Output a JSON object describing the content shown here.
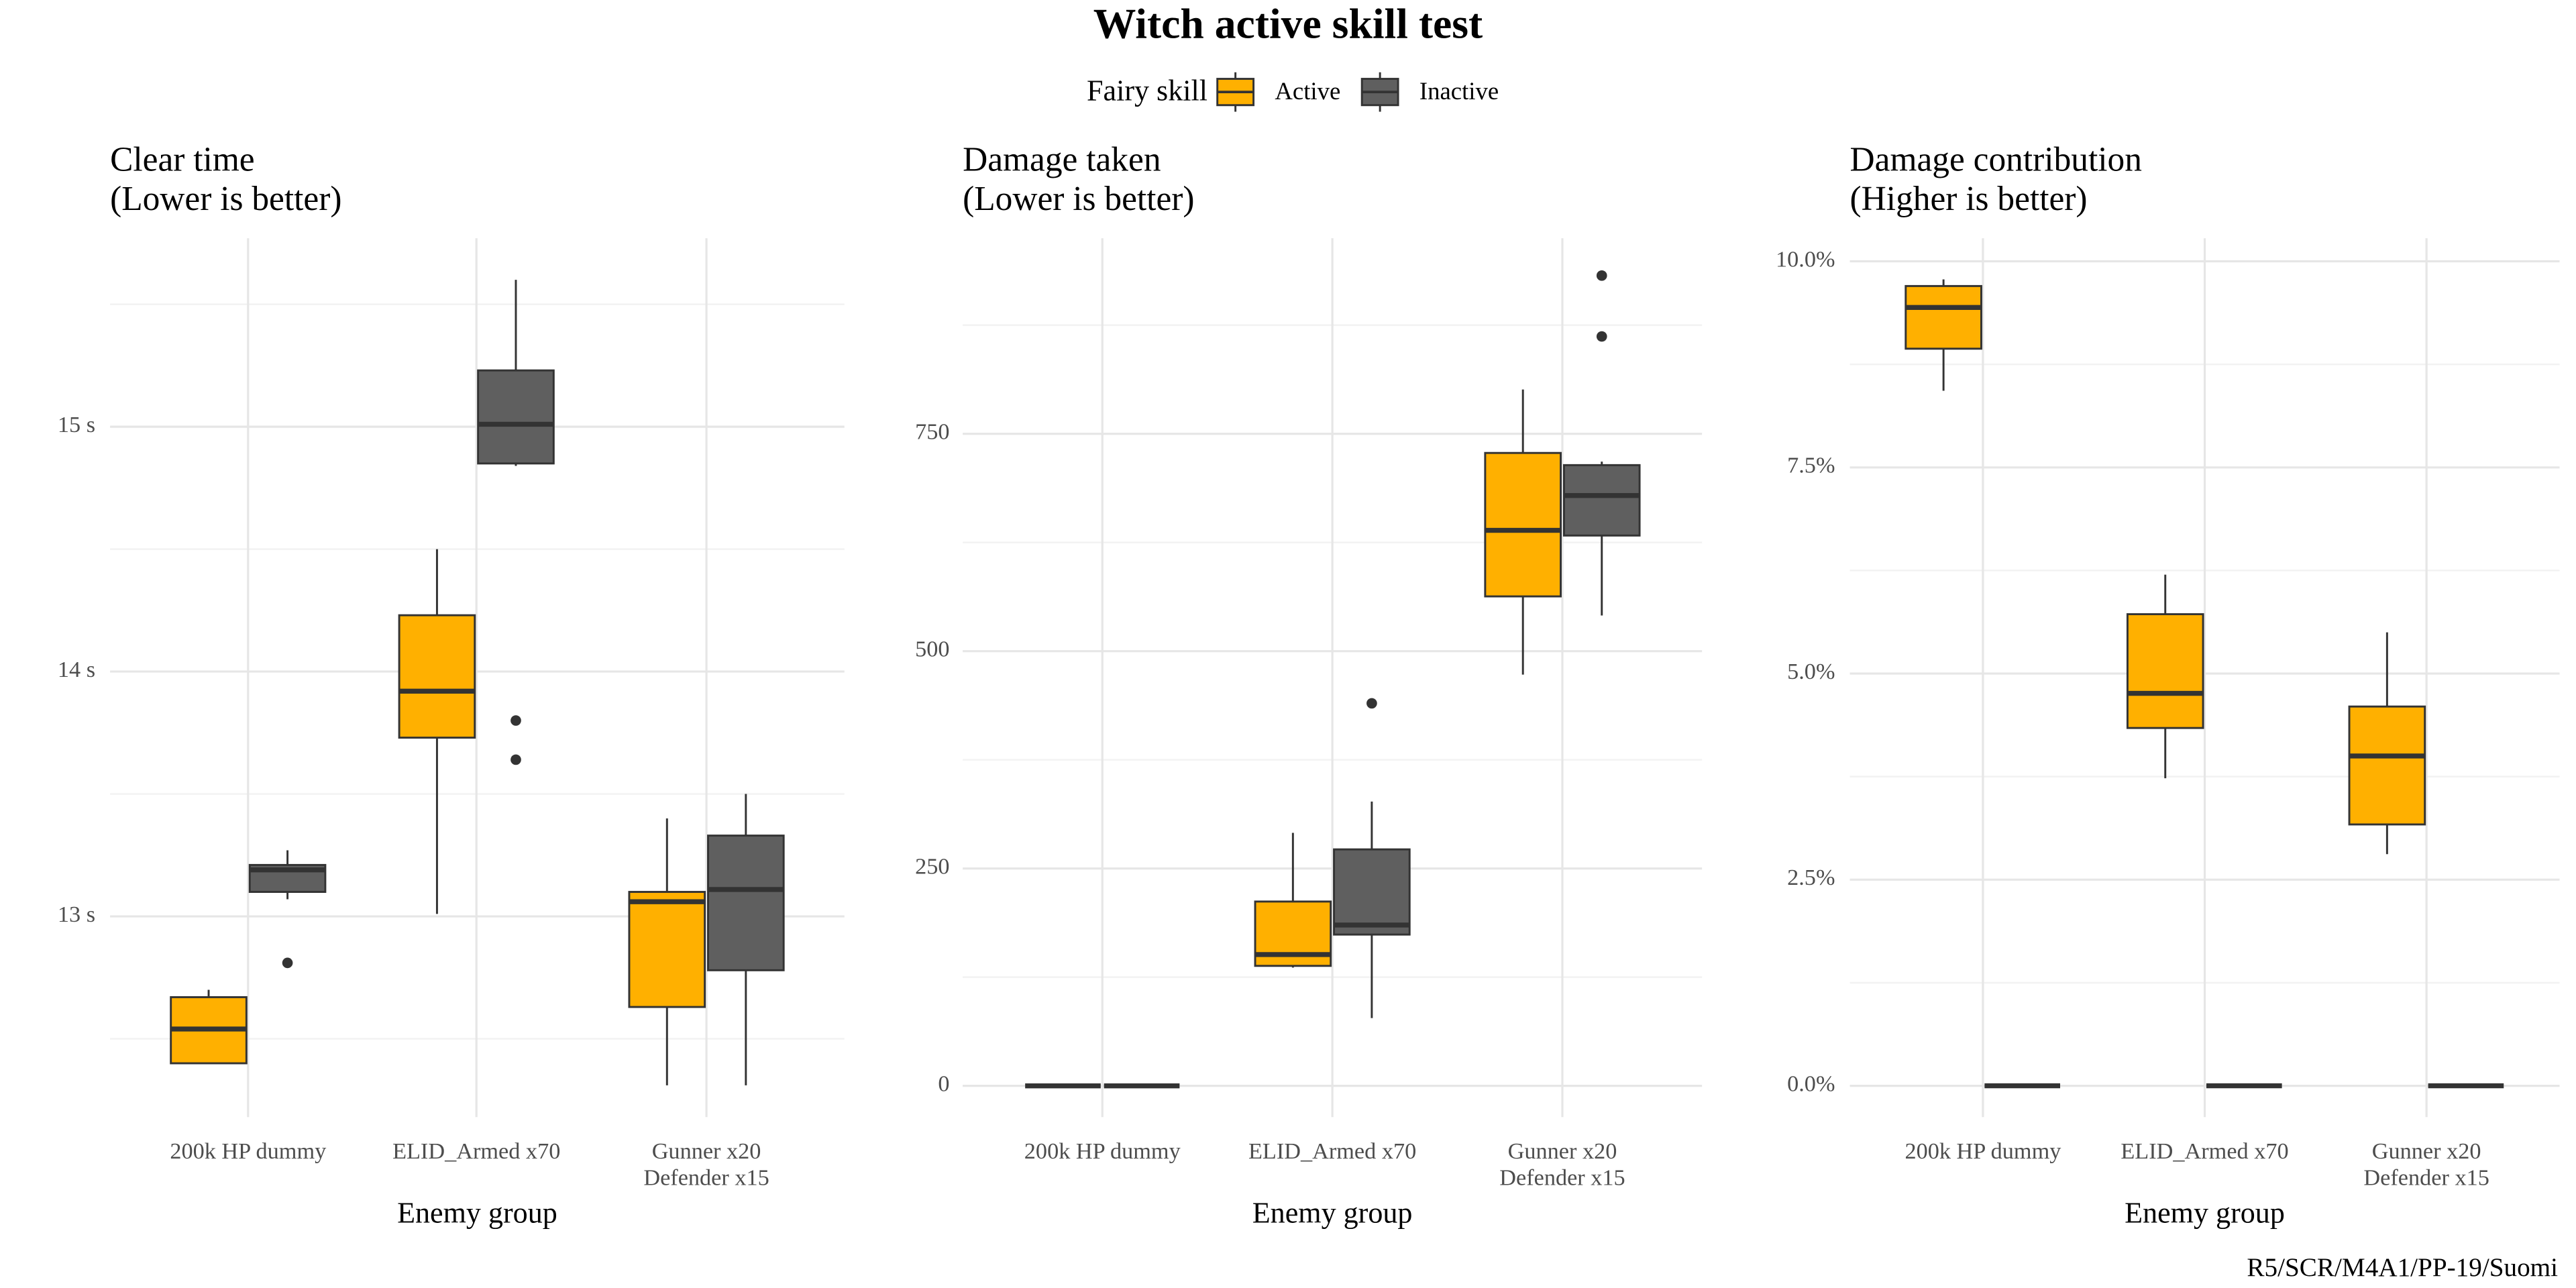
{
  "title": "Witch active skill test",
  "legend_title": "Fairy skill",
  "caption": "R5/SCR/M4A1/PP-19/Suomi",
  "chart_data": [
    {
      "type": "box",
      "title": "Clear time\n(Lower is better)",
      "xlabel": "Enemy group",
      "categories": [
        "200k HP dummy",
        "ELID_Armed x70",
        "Gunner x20\nDefender x15"
      ],
      "ylim": [
        12.18,
        15.77
      ],
      "yticks": [
        {
          "value": 13,
          "label": "13 s"
        },
        {
          "value": 14,
          "label": "14 s"
        },
        {
          "value": 15,
          "label": "15 s"
        }
      ],
      "minor_yticks": [
        12.5,
        13.5,
        14.5,
        15.5
      ],
      "grid": true,
      "series": [
        {
          "name": "Active",
          "color": "#ffb000",
          "values": [
            {
              "min": 12.4,
              "q1": 12.4,
              "median": 12.54,
              "q3": 12.67,
              "max": 12.7,
              "outliers": []
            },
            {
              "min": 13.01,
              "q1": 13.73,
              "median": 13.92,
              "q3": 14.23,
              "max": 14.5,
              "outliers": []
            },
            {
              "min": 12.31,
              "q1": 12.63,
              "median": 13.06,
              "q3": 13.1,
              "max": 13.4,
              "outliers": []
            }
          ]
        },
        {
          "name": "Inactive",
          "color": "#5f5f5f",
          "values": [
            {
              "min": 13.07,
              "q1": 13.1,
              "median": 13.19,
              "q3": 13.21,
              "max": 13.27,
              "outliers": [
                12.81
              ]
            },
            {
              "min": 14.84,
              "q1": 14.85,
              "median": 15.01,
              "q3": 15.23,
              "max": 15.6,
              "outliers": [
                13.8,
                13.64
              ]
            },
            {
              "min": 12.31,
              "q1": 12.78,
              "median": 13.11,
              "q3": 13.33,
              "max": 13.5,
              "outliers": []
            }
          ]
        }
      ]
    },
    {
      "type": "box",
      "title": "Damage taken\n(Lower is better)",
      "xlabel": "Enemy group",
      "categories": [
        "200k HP dummy",
        "ELID_Armed x70",
        "Gunner x20\nDefender x15"
      ],
      "ylim": [
        -36,
        975
      ],
      "yticks": [
        0,
        250,
        500,
        750
      ],
      "minor_yticks": [
        125,
        375,
        625,
        875
      ],
      "grid": true,
      "series": [
        {
          "name": "Active",
          "color": "#ffb000",
          "values": [
            {
              "min": 0,
              "q1": 0,
              "median": 0,
              "q3": 0,
              "max": 0,
              "outliers": []
            },
            {
              "min": 136,
              "q1": 138,
              "median": 151,
              "q3": 212,
              "max": 291,
              "outliers": []
            },
            {
              "min": 473,
              "q1": 563,
              "median": 639,
              "q3": 728,
              "max": 801,
              "outliers": []
            }
          ]
        },
        {
          "name": "Inactive",
          "color": "#5f5f5f",
          "values": [
            {
              "min": 0,
              "q1": 0,
              "median": 0,
              "q3": 0,
              "max": 0,
              "outliers": []
            },
            {
              "min": 78,
              "q1": 174,
              "median": 185,
              "q3": 272,
              "max": 327,
              "outliers": [
                440
              ]
            },
            {
              "min": 541,
              "q1": 633,
              "median": 679,
              "q3": 714,
              "max": 718,
              "outliers": [
                932,
                862
              ]
            }
          ]
        }
      ]
    },
    {
      "type": "box",
      "title": "Damage contribution\n(Higher is better)",
      "xlabel": "Enemy group",
      "categories": [
        "200k HP dummy",
        "ELID_Armed x70",
        "Gunner x20\nDefender x15"
      ],
      "ylim": [
        -0.38,
        10.28
      ],
      "yticks": [
        {
          "value": 0,
          "label": "0.0%"
        },
        {
          "value": 2.5,
          "label": "2.5%"
        },
        {
          "value": 5,
          "label": "5.0%"
        },
        {
          "value": 7.5,
          "label": "7.5%"
        },
        {
          "value": 10,
          "label": "10.0%"
        }
      ],
      "minor_yticks": [
        1.25,
        3.75,
        6.25,
        8.75
      ],
      "grid": true,
      "series": [
        {
          "name": "Active",
          "color": "#ffb000",
          "values": [
            {
              "min": 8.43,
              "q1": 8.94,
              "median": 9.44,
              "q3": 9.7,
              "max": 9.78,
              "outliers": []
            },
            {
              "min": 3.73,
              "q1": 4.34,
              "median": 4.76,
              "q3": 5.72,
              "max": 6.2,
              "outliers": []
            },
            {
              "min": 2.81,
              "q1": 3.17,
              "median": 4.0,
              "q3": 4.6,
              "max": 5.5,
              "outliers": []
            }
          ]
        },
        {
          "name": "Inactive",
          "color": "#5f5f5f",
          "values": [
            {
              "min": 0,
              "q1": 0,
              "median": 0,
              "q3": 0,
              "max": 0,
              "outliers": []
            },
            {
              "min": 0,
              "q1": 0,
              "median": 0,
              "q3": 0,
              "max": 0,
              "outliers": []
            },
            {
              "min": 0,
              "q1": 0,
              "median": 0,
              "q3": 0,
              "max": 0,
              "outliers": []
            }
          ]
        }
      ]
    }
  ]
}
